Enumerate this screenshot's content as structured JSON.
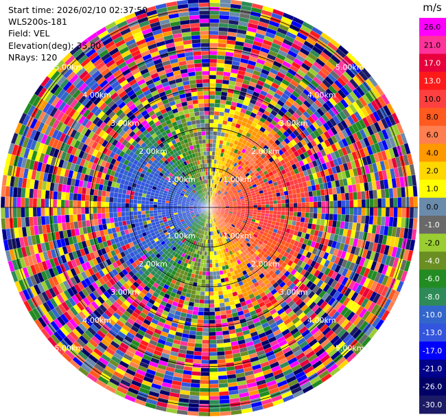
{
  "info": {
    "start_time": "Start time: 2026/02/10 02:37:50",
    "instrument": "WLS200s-181",
    "field": "Field: VEL",
    "elevation": "Elevation(deg): 35.00",
    "nrays": "NRays: 120"
  },
  "chart_data": {
    "type": "heatmap",
    "projection": "polar-ppi",
    "field": "VEL",
    "units": "m/s",
    "nrays": 120,
    "max_range_km": 5.25,
    "ring_labels": [
      "1.00km",
      "2.00km",
      "3.00km",
      "4.00km",
      "5.00km"
    ],
    "ring_ranges_km": [
      1,
      2,
      3,
      4,
      5
    ],
    "colorbar": {
      "title": "m/s",
      "ticks": [
        "26.0",
        "21.0",
        "17.0",
        "13.0",
        "10.0",
        "8.0",
        "6.0",
        "4.0",
        "2.0",
        "1.0",
        "0.0",
        "-1.0",
        "-2.0",
        "-4.0",
        "-6.0",
        "-8.0",
        "-10.0",
        "-13.0",
        "-17.0",
        "-21.0",
        "-26.0",
        "-30.0"
      ],
      "colors": [
        "#ff00ff",
        "#ff3399",
        "#e8003c",
        "#ff1a1a",
        "#ff4040",
        "#ff5a1f",
        "#ff7f50",
        "#ff9900",
        "#ffd700",
        "#ffff00",
        "#6b8bab",
        "#696969",
        "#9acd32",
        "#6b8e23",
        "#228b22",
        "#2e8b57",
        "#3366cc",
        "#3355dd",
        "#0000ff",
        "#00008b",
        "#000066",
        "#1a1a66"
      ]
    },
    "colors": {
      "positive_near": "#ff0000",
      "negative_near": "#2255ff",
      "zero_band": "#ffff00"
    }
  }
}
